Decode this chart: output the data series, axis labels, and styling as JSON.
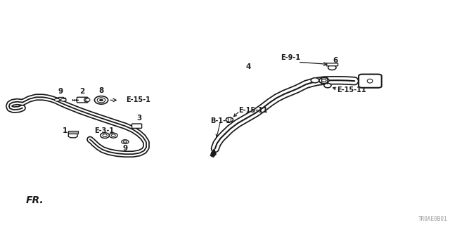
{
  "bg_color": "#ffffff",
  "fig_width": 6.4,
  "fig_height": 3.2,
  "title_code": "TR0AE0B01",
  "fr_label": "FR.",
  "color_main": "#1a1a1a",
  "lw_tube_outer": 6.5,
  "lw_tube_inner": 4.0,
  "lw_tube_line": 1.5,
  "left_tube": {
    "x": [
      0.05,
      0.065,
      0.08,
      0.095,
      0.105,
      0.115,
      0.125,
      0.135,
      0.15,
      0.175,
      0.2,
      0.225,
      0.255,
      0.278,
      0.295,
      0.308,
      0.318,
      0.325,
      0.325,
      0.32,
      0.31,
      0.295,
      0.278,
      0.26,
      0.242,
      0.228,
      0.218,
      0.21
    ],
    "y": [
      0.545,
      0.56,
      0.568,
      0.568,
      0.565,
      0.56,
      0.553,
      0.543,
      0.53,
      0.51,
      0.492,
      0.475,
      0.455,
      0.44,
      0.425,
      0.408,
      0.39,
      0.368,
      0.345,
      0.33,
      0.32,
      0.315,
      0.315,
      0.318,
      0.325,
      0.335,
      0.348,
      0.362
    ]
  },
  "right_tube": {
    "x": [
      0.5,
      0.512,
      0.528,
      0.548,
      0.568,
      0.585,
      0.6,
      0.615,
      0.632,
      0.648,
      0.66,
      0.67,
      0.68,
      0.692,
      0.705,
      0.72,
      0.738,
      0.755,
      0.772,
      0.788
    ],
    "y": [
      0.405,
      0.428,
      0.452,
      0.475,
      0.498,
      0.522,
      0.545,
      0.565,
      0.582,
      0.595,
      0.605,
      0.615,
      0.625,
      0.632,
      0.638,
      0.642,
      0.643,
      0.643,
      0.642,
      0.64
    ]
  }
}
